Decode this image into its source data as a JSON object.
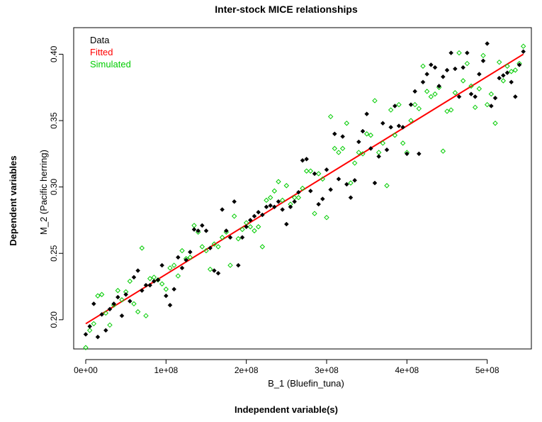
{
  "chart_data": {
    "type": "scatter",
    "title": "Inter-stock MICE relationships",
    "outer_xlabel": "Independent variable(s)",
    "outer_ylabel": "Dependent variables",
    "xlabel": "B_1 (Bluefin_tuna)",
    "ylabel": "M_2 (Pacific herring)",
    "xlim": [
      -15000000,
      555000000
    ],
    "ylim": [
      0.178,
      0.42
    ],
    "x_ticks": [
      0,
      100000000,
      200000000,
      300000000,
      400000000,
      500000000
    ],
    "x_tick_labels": [
      "0e+00",
      "1e+08",
      "2e+08",
      "3e+08",
      "4e+08",
      "5e+08"
    ],
    "y_ticks": [
      0.2,
      0.25,
      0.3,
      0.35,
      0.4
    ],
    "y_tick_labels": [
      "0.20",
      "0.25",
      "0.30",
      "0.35",
      "0.40"
    ],
    "grid": false,
    "legend": {
      "position": "top-left",
      "entries": [
        {
          "label": "Data",
          "color": "#000000"
        },
        {
          "label": "Fitted",
          "color": "#ff0000"
        },
        {
          "label": "Simulated",
          "color": "#00cc00"
        }
      ]
    },
    "series": [
      {
        "name": "Data",
        "marker": "filled-diamond",
        "color": "#000000",
        "points": [
          [
            0,
            0.189
          ],
          [
            5000000,
            0.195
          ],
          [
            10000000,
            0.212
          ],
          [
            15000000,
            0.187
          ],
          [
            20000000,
            0.204
          ],
          [
            25000000,
            0.192
          ],
          [
            30000000,
            0.208
          ],
          [
            35000000,
            0.212
          ],
          [
            40000000,
            0.217
          ],
          [
            45000000,
            0.203
          ],
          [
            50000000,
            0.219
          ],
          [
            55000000,
            0.214
          ],
          [
            60000000,
            0.232
          ],
          [
            65000000,
            0.237
          ],
          [
            70000000,
            0.222
          ],
          [
            75000000,
            0.226
          ],
          [
            80000000,
            0.226
          ],
          [
            85000000,
            0.229
          ],
          [
            90000000,
            0.23
          ],
          [
            95000000,
            0.241
          ],
          [
            100000000,
            0.218
          ],
          [
            105000000,
            0.211
          ],
          [
            110000000,
            0.223
          ],
          [
            115000000,
            0.247
          ],
          [
            120000000,
            0.239
          ],
          [
            125000000,
            0.245
          ],
          [
            130000000,
            0.251
          ],
          [
            135000000,
            0.268
          ],
          [
            140000000,
            0.267
          ],
          [
            145000000,
            0.271
          ],
          [
            150000000,
            0.267
          ],
          [
            155000000,
            0.254
          ],
          [
            160000000,
            0.237
          ],
          [
            165000000,
            0.235
          ],
          [
            170000000,
            0.283
          ],
          [
            175000000,
            0.267
          ],
          [
            180000000,
            0.262
          ],
          [
            185000000,
            0.289
          ],
          [
            190000000,
            0.241
          ],
          [
            195000000,
            0.262
          ],
          [
            200000000,
            0.27
          ],
          [
            205000000,
            0.275
          ],
          [
            210000000,
            0.278
          ],
          [
            215000000,
            0.281
          ],
          [
            220000000,
            0.279
          ],
          [
            225000000,
            0.285
          ],
          [
            230000000,
            0.286
          ],
          [
            235000000,
            0.285
          ],
          [
            240000000,
            0.289
          ],
          [
            245000000,
            0.283
          ],
          [
            250000000,
            0.272
          ],
          [
            255000000,
            0.285
          ],
          [
            260000000,
            0.289
          ],
          [
            265000000,
            0.296
          ],
          [
            270000000,
            0.32
          ],
          [
            275000000,
            0.321
          ],
          [
            280000000,
            0.297
          ],
          [
            285000000,
            0.31
          ],
          [
            290000000,
            0.287
          ],
          [
            295000000,
            0.291
          ],
          [
            300000000,
            0.313
          ],
          [
            305000000,
            0.298
          ],
          [
            310000000,
            0.34
          ],
          [
            315000000,
            0.306
          ],
          [
            320000000,
            0.338
          ],
          [
            325000000,
            0.302
          ],
          [
            330000000,
            0.292
          ],
          [
            335000000,
            0.305
          ],
          [
            340000000,
            0.334
          ],
          [
            345000000,
            0.342
          ],
          [
            350000000,
            0.355
          ],
          [
            355000000,
            0.329
          ],
          [
            360000000,
            0.303
          ],
          [
            365000000,
            0.323
          ],
          [
            370000000,
            0.348
          ],
          [
            375000000,
            0.328
          ],
          [
            380000000,
            0.345
          ],
          [
            385000000,
            0.361
          ],
          [
            390000000,
            0.346
          ],
          [
            395000000,
            0.345
          ],
          [
            400000000,
            0.325
          ],
          [
            405000000,
            0.362
          ],
          [
            410000000,
            0.372
          ],
          [
            415000000,
            0.325
          ],
          [
            420000000,
            0.379
          ],
          [
            425000000,
            0.385
          ],
          [
            430000000,
            0.392
          ],
          [
            435000000,
            0.39
          ],
          [
            440000000,
            0.376
          ],
          [
            445000000,
            0.383
          ],
          [
            450000000,
            0.388
          ],
          [
            455000000,
            0.401
          ],
          [
            460000000,
            0.389
          ],
          [
            465000000,
            0.368
          ],
          [
            470000000,
            0.39
          ],
          [
            475000000,
            0.401
          ],
          [
            480000000,
            0.37
          ],
          [
            485000000,
            0.368
          ],
          [
            490000000,
            0.385
          ],
          [
            495000000,
            0.395
          ],
          [
            500000000,
            0.408
          ],
          [
            505000000,
            0.361
          ],
          [
            510000000,
            0.367
          ],
          [
            515000000,
            0.382
          ],
          [
            520000000,
            0.384
          ],
          [
            525000000,
            0.386
          ],
          [
            530000000,
            0.379
          ],
          [
            535000000,
            0.368
          ],
          [
            540000000,
            0.392
          ],
          [
            545000000,
            0.402
          ]
        ]
      },
      {
        "name": "Fitted",
        "marker": "line",
        "color": "#ff0000",
        "points": [
          [
            0,
            0.197
          ],
          [
            545000000,
            0.4
          ]
        ]
      },
      {
        "name": "Simulated",
        "marker": "open-diamond",
        "color": "#00cc00",
        "points": [
          [
            0,
            0.179
          ],
          [
            5000000,
            0.192
          ],
          [
            10000000,
            0.197
          ],
          [
            15000000,
            0.218
          ],
          [
            20000000,
            0.219
          ],
          [
            25000000,
            0.205
          ],
          [
            30000000,
            0.196
          ],
          [
            35000000,
            0.211
          ],
          [
            40000000,
            0.222
          ],
          [
            45000000,
            0.215
          ],
          [
            50000000,
            0.221
          ],
          [
            55000000,
            0.229
          ],
          [
            60000000,
            0.212
          ],
          [
            65000000,
            0.206
          ],
          [
            70000000,
            0.254
          ],
          [
            75000000,
            0.203
          ],
          [
            80000000,
            0.231
          ],
          [
            85000000,
            0.232
          ],
          [
            90000000,
            0.23
          ],
          [
            95000000,
            0.227
          ],
          [
            100000000,
            0.223
          ],
          [
            105000000,
            0.239
          ],
          [
            110000000,
            0.241
          ],
          [
            115000000,
            0.233
          ],
          [
            120000000,
            0.252
          ],
          [
            125000000,
            0.246
          ],
          [
            130000000,
            0.247
          ],
          [
            135000000,
            0.271
          ],
          [
            140000000,
            0.266
          ],
          [
            145000000,
            0.255
          ],
          [
            150000000,
            0.252
          ],
          [
            155000000,
            0.238
          ],
          [
            160000000,
            0.257
          ],
          [
            165000000,
            0.255
          ],
          [
            170000000,
            0.262
          ],
          [
            175000000,
            0.266
          ],
          [
            180000000,
            0.241
          ],
          [
            185000000,
            0.278
          ],
          [
            190000000,
            0.261
          ],
          [
            195000000,
            0.268
          ],
          [
            200000000,
            0.273
          ],
          [
            205000000,
            0.27
          ],
          [
            210000000,
            0.267
          ],
          [
            215000000,
            0.27
          ],
          [
            220000000,
            0.255
          ],
          [
            225000000,
            0.29
          ],
          [
            230000000,
            0.292
          ],
          [
            235000000,
            0.297
          ],
          [
            240000000,
            0.304
          ],
          [
            245000000,
            0.29
          ],
          [
            250000000,
            0.301
          ],
          [
            255000000,
            0.287
          ],
          [
            260000000,
            0.292
          ],
          [
            265000000,
            0.292
          ],
          [
            270000000,
            0.299
          ],
          [
            275000000,
            0.312
          ],
          [
            280000000,
            0.312
          ],
          [
            285000000,
            0.28
          ],
          [
            290000000,
            0.31
          ],
          [
            295000000,
            0.306
          ],
          [
            300000000,
            0.277
          ],
          [
            305000000,
            0.353
          ],
          [
            310000000,
            0.329
          ],
          [
            315000000,
            0.326
          ],
          [
            320000000,
            0.329
          ],
          [
            325000000,
            0.348
          ],
          [
            330000000,
            0.303
          ],
          [
            335000000,
            0.318
          ],
          [
            340000000,
            0.326
          ],
          [
            345000000,
            0.325
          ],
          [
            350000000,
            0.34
          ],
          [
            355000000,
            0.339
          ],
          [
            360000000,
            0.365
          ],
          [
            365000000,
            0.326
          ],
          [
            370000000,
            0.333
          ],
          [
            375000000,
            0.301
          ],
          [
            380000000,
            0.358
          ],
          [
            385000000,
            0.339
          ],
          [
            390000000,
            0.362
          ],
          [
            395000000,
            0.333
          ],
          [
            400000000,
            0.326
          ],
          [
            405000000,
            0.35
          ],
          [
            410000000,
            0.362
          ],
          [
            415000000,
            0.359
          ],
          [
            420000000,
            0.391
          ],
          [
            425000000,
            0.372
          ],
          [
            430000000,
            0.368
          ],
          [
            435000000,
            0.37
          ],
          [
            440000000,
            0.375
          ],
          [
            445000000,
            0.327
          ],
          [
            450000000,
            0.357
          ],
          [
            455000000,
            0.358
          ],
          [
            460000000,
            0.371
          ],
          [
            465000000,
            0.401
          ],
          [
            470000000,
            0.38
          ],
          [
            475000000,
            0.393
          ],
          [
            480000000,
            0.376
          ],
          [
            485000000,
            0.36
          ],
          [
            490000000,
            0.374
          ],
          [
            495000000,
            0.399
          ],
          [
            500000000,
            0.362
          ],
          [
            505000000,
            0.37
          ],
          [
            510000000,
            0.348
          ],
          [
            515000000,
            0.394
          ],
          [
            520000000,
            0.38
          ],
          [
            525000000,
            0.391
          ],
          [
            530000000,
            0.387
          ],
          [
            535000000,
            0.388
          ],
          [
            540000000,
            0.393
          ],
          [
            545000000,
            0.406
          ]
        ]
      }
    ]
  }
}
